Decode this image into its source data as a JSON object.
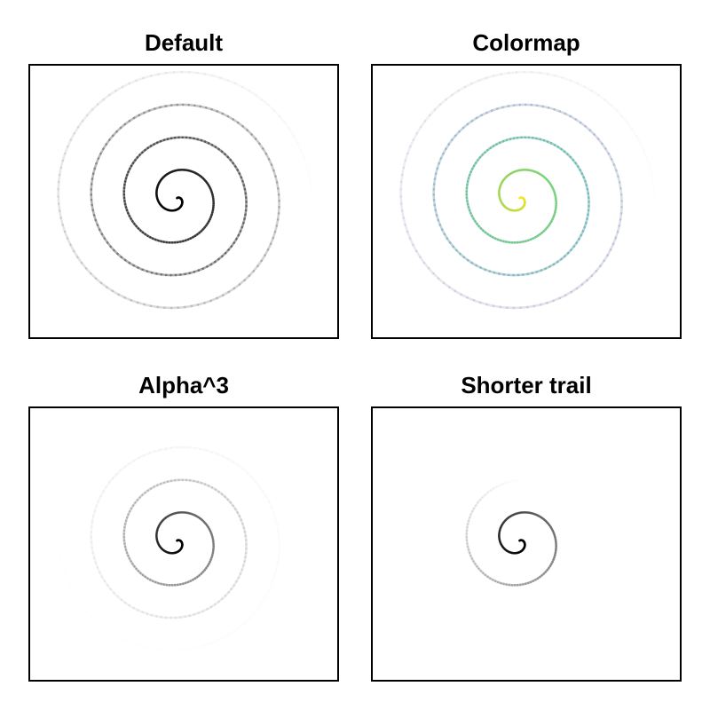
{
  "chart_data": [
    {
      "type": "line",
      "title": "Default",
      "colormap": "greys",
      "color": "#000000",
      "alpha_exponent": 1,
      "trail_fraction": 1.0,
      "spiral": {
        "turns": 4.1,
        "radius_max": 1.0,
        "center": [
          0,
          0
        ]
      },
      "xlim": [
        -1.1,
        1.2
      ],
      "ylim": [
        -1.05,
        1.0
      ],
      "ticks_visible": false,
      "grid": false
    },
    {
      "type": "line",
      "title": "Colormap",
      "colormap": "viridis",
      "colormap_stops": [
        "#440154",
        "#3b528b",
        "#21918c",
        "#5ec962",
        "#fde725"
      ],
      "alpha_exponent": 1,
      "trail_fraction": 1.0,
      "spiral": {
        "turns": 4.1,
        "radius_max": 1.0,
        "center": [
          0,
          0
        ]
      },
      "xlim": [
        -1.1,
        1.2
      ],
      "ylim": [
        -1.05,
        1.0
      ],
      "ticks_visible": false,
      "grid": false
    },
    {
      "type": "line",
      "title": "Alpha^3",
      "colormap": "greys",
      "color": "#000000",
      "alpha_exponent": 3,
      "trail_fraction": 1.0,
      "spiral": {
        "turns": 4.1,
        "radius_max": 1.0,
        "center": [
          0,
          0
        ]
      },
      "xlim": [
        -1.1,
        1.2
      ],
      "ylim": [
        -1.05,
        1.0
      ],
      "ticks_visible": false,
      "grid": false
    },
    {
      "type": "line",
      "title": "Shorter trail",
      "colormap": "greys",
      "color": "#000000",
      "alpha_exponent": 1,
      "trail_fraction": 0.45,
      "spiral": {
        "turns": 4.1,
        "radius_max": 1.0,
        "center": [
          0,
          0
        ]
      },
      "xlim": [
        -1.1,
        1.2
      ],
      "ylim": [
        -1.05,
        1.0
      ],
      "ticks_visible": false,
      "grid": false
    }
  ]
}
